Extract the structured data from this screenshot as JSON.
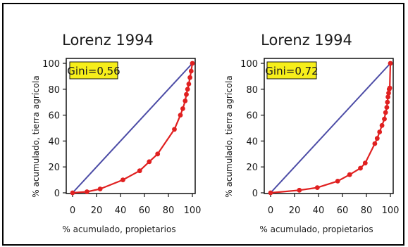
{
  "chart_data": [
    {
      "type": "line",
      "title": "Lorenz 1994",
      "xlabel": "% acumulado, propietarios",
      "ylabel": "% acumulado, tierra agrícola",
      "annotation": "Gini=0,56",
      "xlim": [
        0,
        100
      ],
      "ylim": [
        0,
        100
      ],
      "xticks": [
        "0",
        "20",
        "40",
        "60",
        "80",
        "100"
      ],
      "yticks": [
        "0",
        "20",
        "40",
        "60",
        "80",
        "100"
      ],
      "equality_line": {
        "x": [
          0,
          100
        ],
        "y": [
          0,
          100
        ],
        "color": "#4c4ca6"
      },
      "series": [
        {
          "color": "#e02020",
          "x": [
            0,
            12,
            23,
            42,
            56,
            64,
            71,
            85,
            90,
            92,
            94,
            95,
            96,
            97,
            98,
            99,
            100
          ],
          "y": [
            0,
            0.8,
            3,
            10,
            17,
            24,
            30,
            49,
            60,
            65,
            71,
            76,
            80,
            84,
            89,
            94,
            100
          ]
        }
      ]
    },
    {
      "type": "line",
      "title": "Lorenz 1994",
      "xlabel": "% acumulado, propietarios",
      "ylabel": "% acumulado, tierra agrícola",
      "annotation": "Gini=0,72",
      "xlim": [
        0,
        100
      ],
      "ylim": [
        0,
        100
      ],
      "xticks": [
        "0",
        "20",
        "40",
        "60",
        "80",
        "100"
      ],
      "yticks": [
        "0",
        "20",
        "40",
        "60",
        "80",
        "100"
      ],
      "equality_line": {
        "x": [
          0,
          100
        ],
        "y": [
          0,
          100
        ],
        "color": "#4c4ca6"
      },
      "series": [
        {
          "color": "#e02020",
          "x": [
            0,
            24,
            39,
            56,
            66,
            75,
            79,
            87,
            89,
            91,
            93,
            95,
            96,
            97,
            97.5,
            98,
            98.5,
            99,
            99.5,
            100
          ],
          "y": [
            0,
            2,
            4,
            9,
            14,
            19,
            23,
            38,
            42,
            47,
            52,
            57,
            62,
            66,
            70,
            74,
            77,
            80,
            81,
            100
          ]
        }
      ]
    }
  ]
}
